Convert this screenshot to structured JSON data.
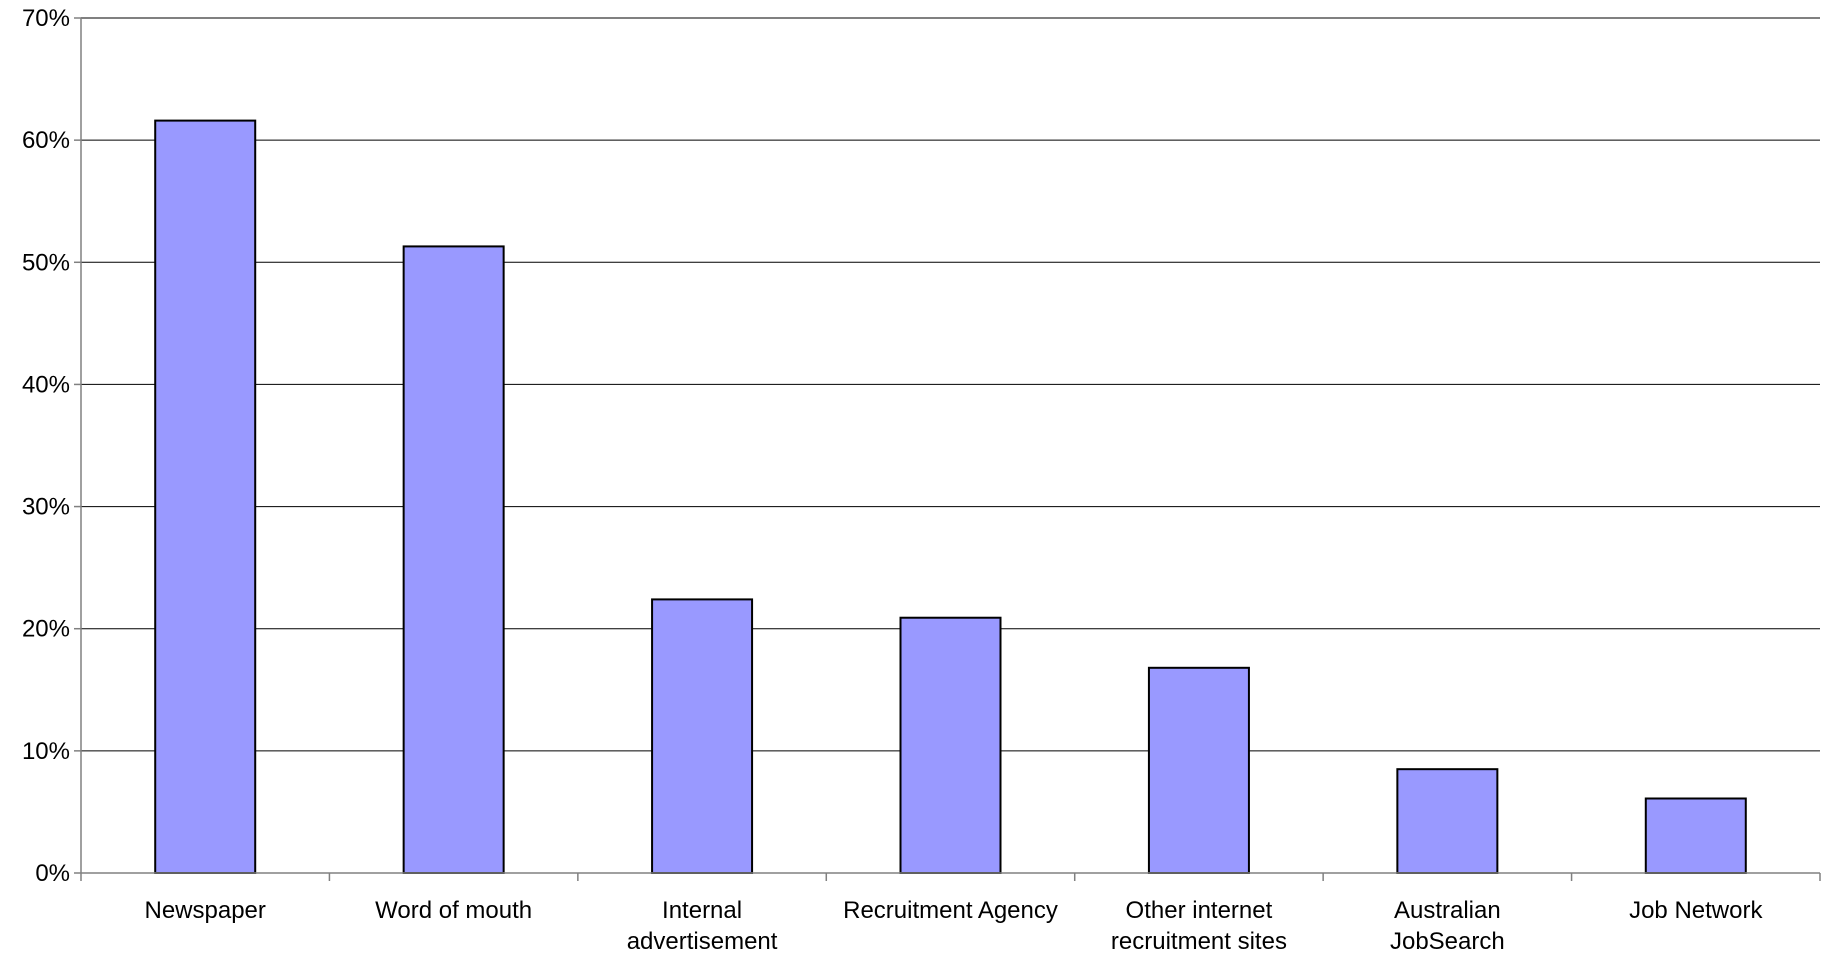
{
  "chart_data": {
    "type": "bar",
    "categories": [
      [
        "Newspaper"
      ],
      [
        "Word of mouth"
      ],
      [
        "Internal",
        "advertisement"
      ],
      [
        "Recruitment Agency"
      ],
      [
        "Other internet",
        "recruitment sites"
      ],
      [
        "Australian",
        "JobSearch"
      ],
      [
        "Job Network"
      ]
    ],
    "values": [
      61.6,
      51.3,
      22.4,
      20.9,
      16.8,
      8.5,
      6.1
    ],
    "y_ticks": [
      "0%",
      "10%",
      "20%",
      "30%",
      "40%",
      "50%",
      "60%",
      "70%"
    ],
    "ylim": [
      0,
      70
    ],
    "y_step": 10,
    "grid": true,
    "legend": "none",
    "colors": {
      "bar_fill": "#9999FF",
      "bar_stroke": "#000000",
      "grid": "#000000",
      "axis": "#808080"
    }
  }
}
